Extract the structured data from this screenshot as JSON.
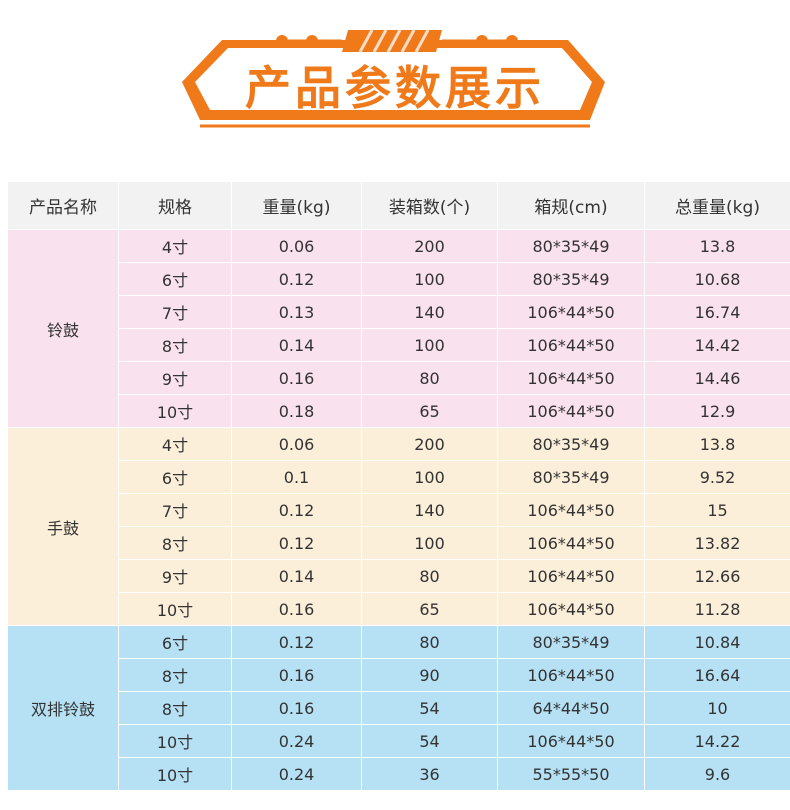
{
  "banner": {
    "title": "产品参数展示",
    "accent": "#f07a1a"
  },
  "table": {
    "headers": [
      "产品名称",
      "规格",
      "重量(kg)",
      "装箱数(个)",
      "箱规(cm)",
      "总重量(kg)"
    ],
    "groups": [
      {
        "name": "铃鼓",
        "bg": "#f9e1ee",
        "rows": [
          [
            "4寸",
            "0.06",
            "200",
            "80*35*49",
            "13.8"
          ],
          [
            "6寸",
            "0.12",
            "100",
            "80*35*49",
            "10.68"
          ],
          [
            "7寸",
            "0.13",
            "140",
            "106*44*50",
            "16.74"
          ],
          [
            "8寸",
            "0.14",
            "100",
            "106*44*50",
            "14.42"
          ],
          [
            "9寸",
            "0.16",
            "80",
            "106*44*50",
            "14.46"
          ],
          [
            "10寸",
            "0.18",
            "65",
            "106*44*50",
            "12.9"
          ]
        ]
      },
      {
        "name": "手鼓",
        "bg": "#fcefda",
        "rows": [
          [
            "4寸",
            "0.06",
            "200",
            "80*35*49",
            "13.8"
          ],
          [
            "6寸",
            "0.1",
            "100",
            "80*35*49",
            "9.52"
          ],
          [
            "7寸",
            "0.12",
            "140",
            "106*44*50",
            "15"
          ],
          [
            "8寸",
            "0.12",
            "100",
            "106*44*50",
            "13.82"
          ],
          [
            "9寸",
            "0.14",
            "80",
            "106*44*50",
            "12.66"
          ],
          [
            "10寸",
            "0.16",
            "65",
            "106*44*50",
            "11.28"
          ]
        ]
      },
      {
        "name": "双排铃鼓",
        "bg": "#b6e1f5",
        "rows": [
          [
            "6寸",
            "0.12",
            "80",
            "80*35*49",
            "10.84"
          ],
          [
            "8寸",
            "0.16",
            "90",
            "106*44*50",
            "16.64"
          ],
          [
            "8寸",
            "0.16",
            "54",
            "64*44*50",
            "10"
          ],
          [
            "10寸",
            "0.24",
            "54",
            "106*44*50",
            "14.22"
          ],
          [
            "10寸",
            "0.24",
            "36",
            "55*55*50",
            "9.6"
          ]
        ]
      }
    ]
  }
}
